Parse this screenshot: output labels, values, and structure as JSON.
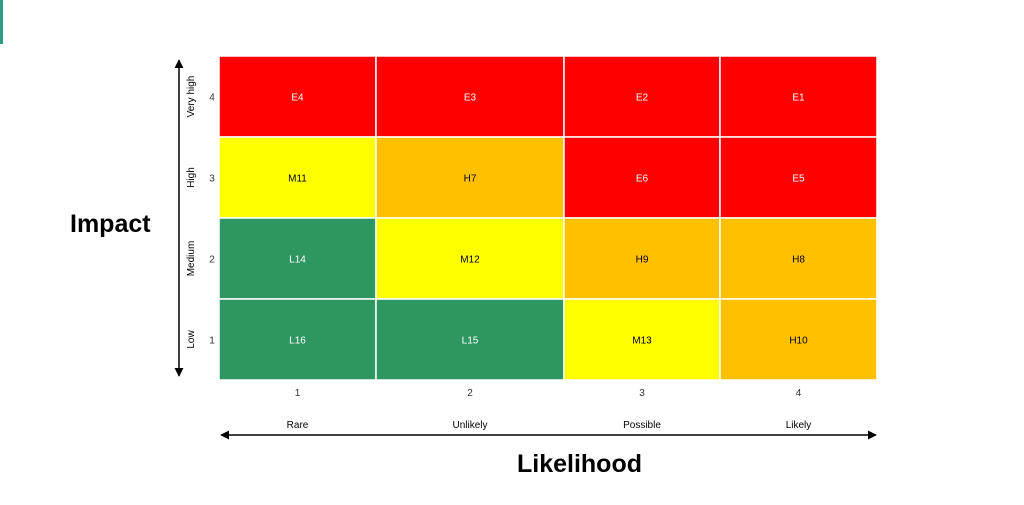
{
  "chart_data": {
    "type": "heatmap",
    "xlabel": "Likelihood",
    "ylabel": "Impact",
    "x_values": [
      "1",
      "2",
      "3",
      "4"
    ],
    "x_categories": [
      "Rare",
      "Unlikely",
      "Possible",
      "Likely"
    ],
    "y_values": [
      "1",
      "2",
      "3",
      "4"
    ],
    "y_categories": [
      "Low",
      "Medium",
      "High",
      "Very high"
    ],
    "colors": {
      "E": "#ff0000",
      "H": "#ffc000",
      "M": "#ffff00",
      "L": "#2e9660"
    },
    "cells": [
      {
        "likelihood": 1,
        "impact": 4,
        "label": "E4"
      },
      {
        "likelihood": 2,
        "impact": 4,
        "label": "E3"
      },
      {
        "likelihood": 3,
        "impact": 4,
        "label": "E2"
      },
      {
        "likelihood": 4,
        "impact": 4,
        "label": "E1"
      },
      {
        "likelihood": 1,
        "impact": 3,
        "label": "M11"
      },
      {
        "likelihood": 2,
        "impact": 3,
        "label": "H7"
      },
      {
        "likelihood": 3,
        "impact": 3,
        "label": "E6"
      },
      {
        "likelihood": 4,
        "impact": 3,
        "label": "E5"
      },
      {
        "likelihood": 1,
        "impact": 2,
        "label": "L14"
      },
      {
        "likelihood": 2,
        "impact": 2,
        "label": "M12"
      },
      {
        "likelihood": 3,
        "impact": 2,
        "label": "H9"
      },
      {
        "likelihood": 4,
        "impact": 2,
        "label": "H8"
      },
      {
        "likelihood": 1,
        "impact": 1,
        "label": "L16"
      },
      {
        "likelihood": 2,
        "impact": 1,
        "label": "L15"
      },
      {
        "likelihood": 3,
        "impact": 1,
        "label": "M13"
      },
      {
        "likelihood": 4,
        "impact": 1,
        "label": "H10"
      }
    ]
  }
}
